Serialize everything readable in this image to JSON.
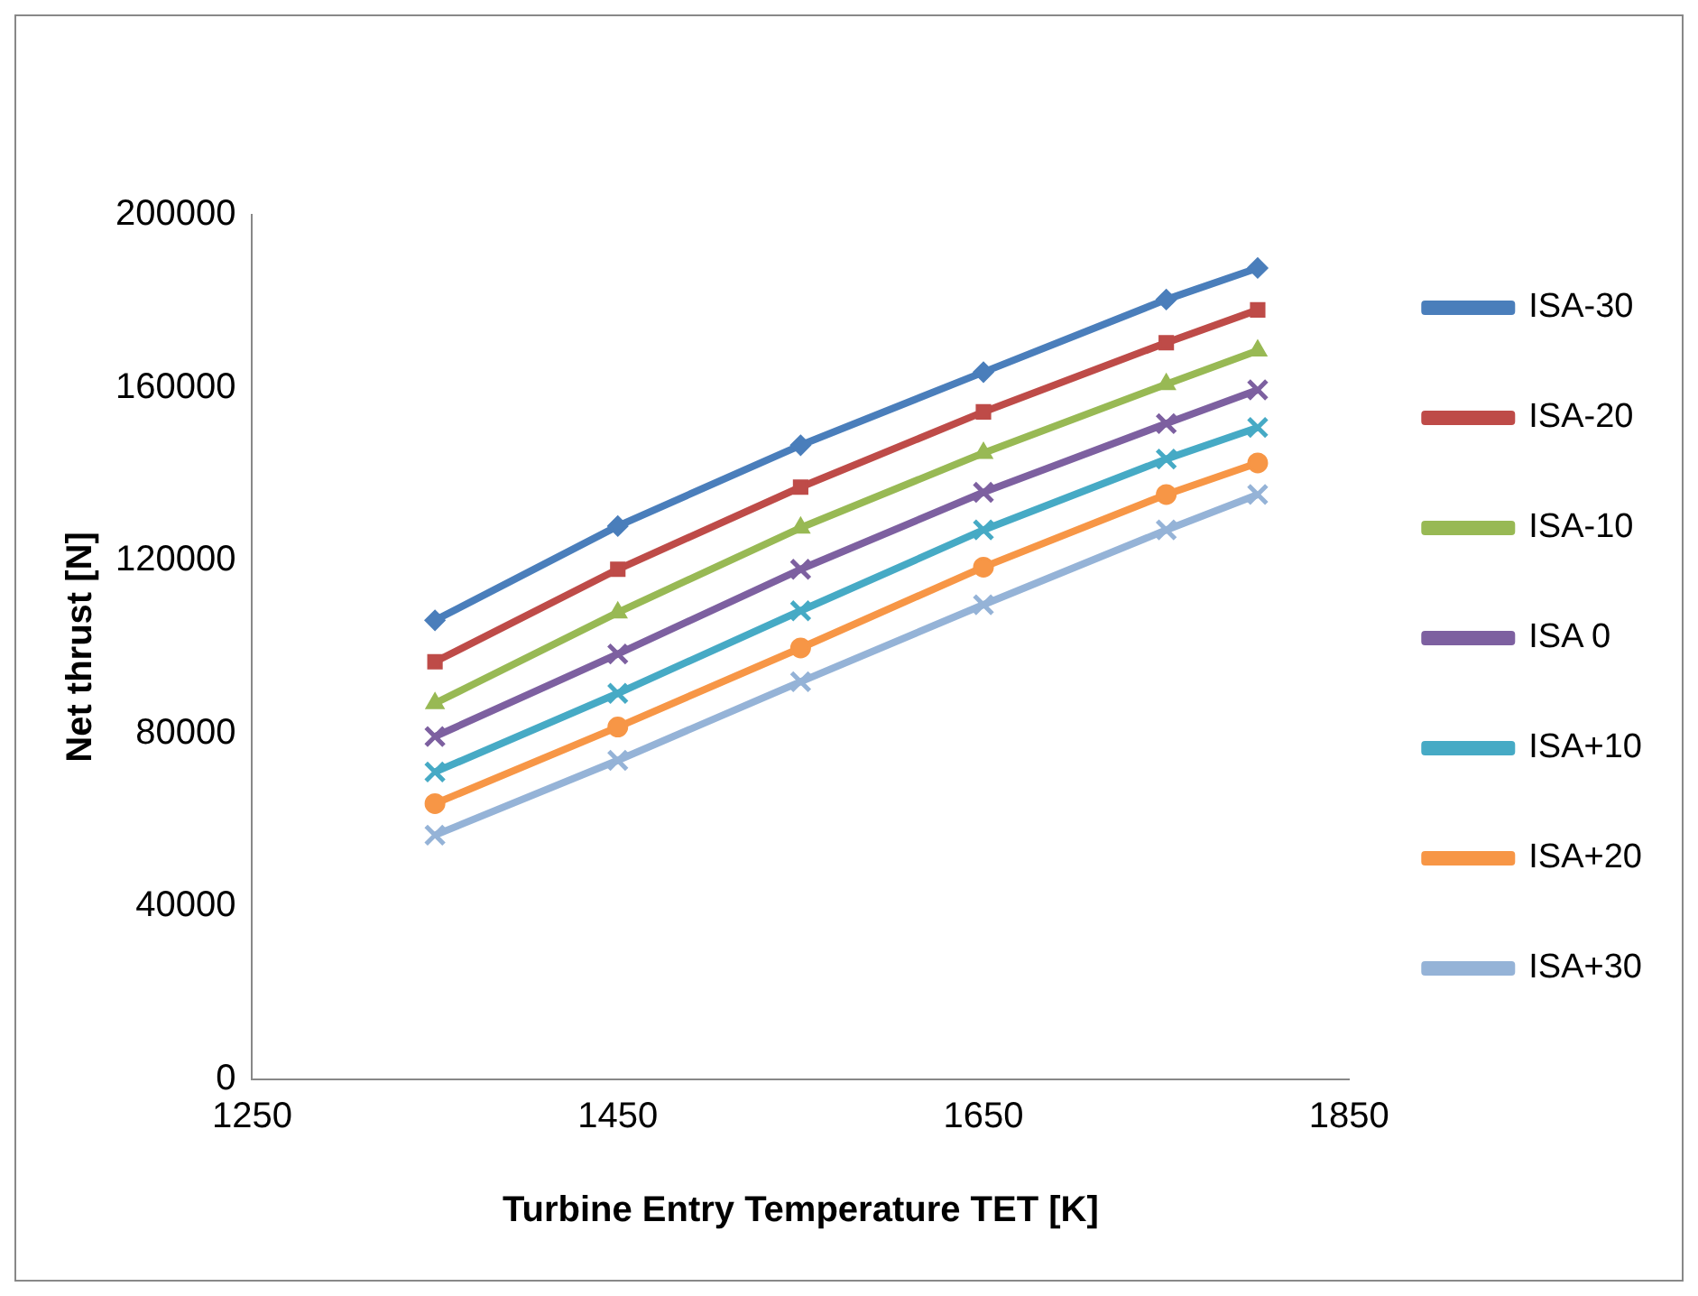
{
  "chart_data": {
    "type": "line",
    "xlabel": "Turbine Entry Temperature TET [K]",
    "ylabel": "Net thrust [N]",
    "x": [
      1350,
      1450,
      1550,
      1650,
      1750,
      1800
    ],
    "xlim": [
      1250,
      1850
    ],
    "xticks": [
      1250,
      1450,
      1650,
      1850
    ],
    "ylim": [
      0,
      200000
    ],
    "yticks": [
      0,
      40000,
      80000,
      120000,
      160000,
      200000
    ],
    "grid": false,
    "legend": "right",
    "line_style": "solid",
    "series": [
      {
        "name": "ISA-30",
        "color": "#4a7ebb",
        "marker": "diamond",
        "values": [
          106200,
          128000,
          146700,
          163600,
          180400,
          187700
        ]
      },
      {
        "name": "ISA-20",
        "color": "#be4b48",
        "marker": "square",
        "values": [
          96600,
          118000,
          137000,
          154400,
          170400,
          178000
        ]
      },
      {
        "name": "ISA-10",
        "color": "#98b954",
        "marker": "triangle",
        "values": [
          87000,
          108000,
          127600,
          144900,
          160800,
          168600
        ]
      },
      {
        "name": "ISA 0",
        "color": "#7d60a0",
        "marker": "cross",
        "values": [
          79300,
          98400,
          118000,
          135800,
          151700,
          159500
        ]
      },
      {
        "name": "ISA+10",
        "color": "#46aac5",
        "marker": "cross",
        "values": [
          71100,
          89300,
          108400,
          127100,
          143500,
          150800
        ]
      },
      {
        "name": "ISA+20",
        "color": "#f79646",
        "marker": "circle",
        "values": [
          63800,
          81500,
          99800,
          118500,
          135300,
          142600
        ]
      },
      {
        "name": "ISA+30",
        "color": "#95b3d7",
        "marker": "cross",
        "values": [
          56500,
          73800,
          92000,
          109800,
          127100,
          135300
        ]
      }
    ]
  }
}
